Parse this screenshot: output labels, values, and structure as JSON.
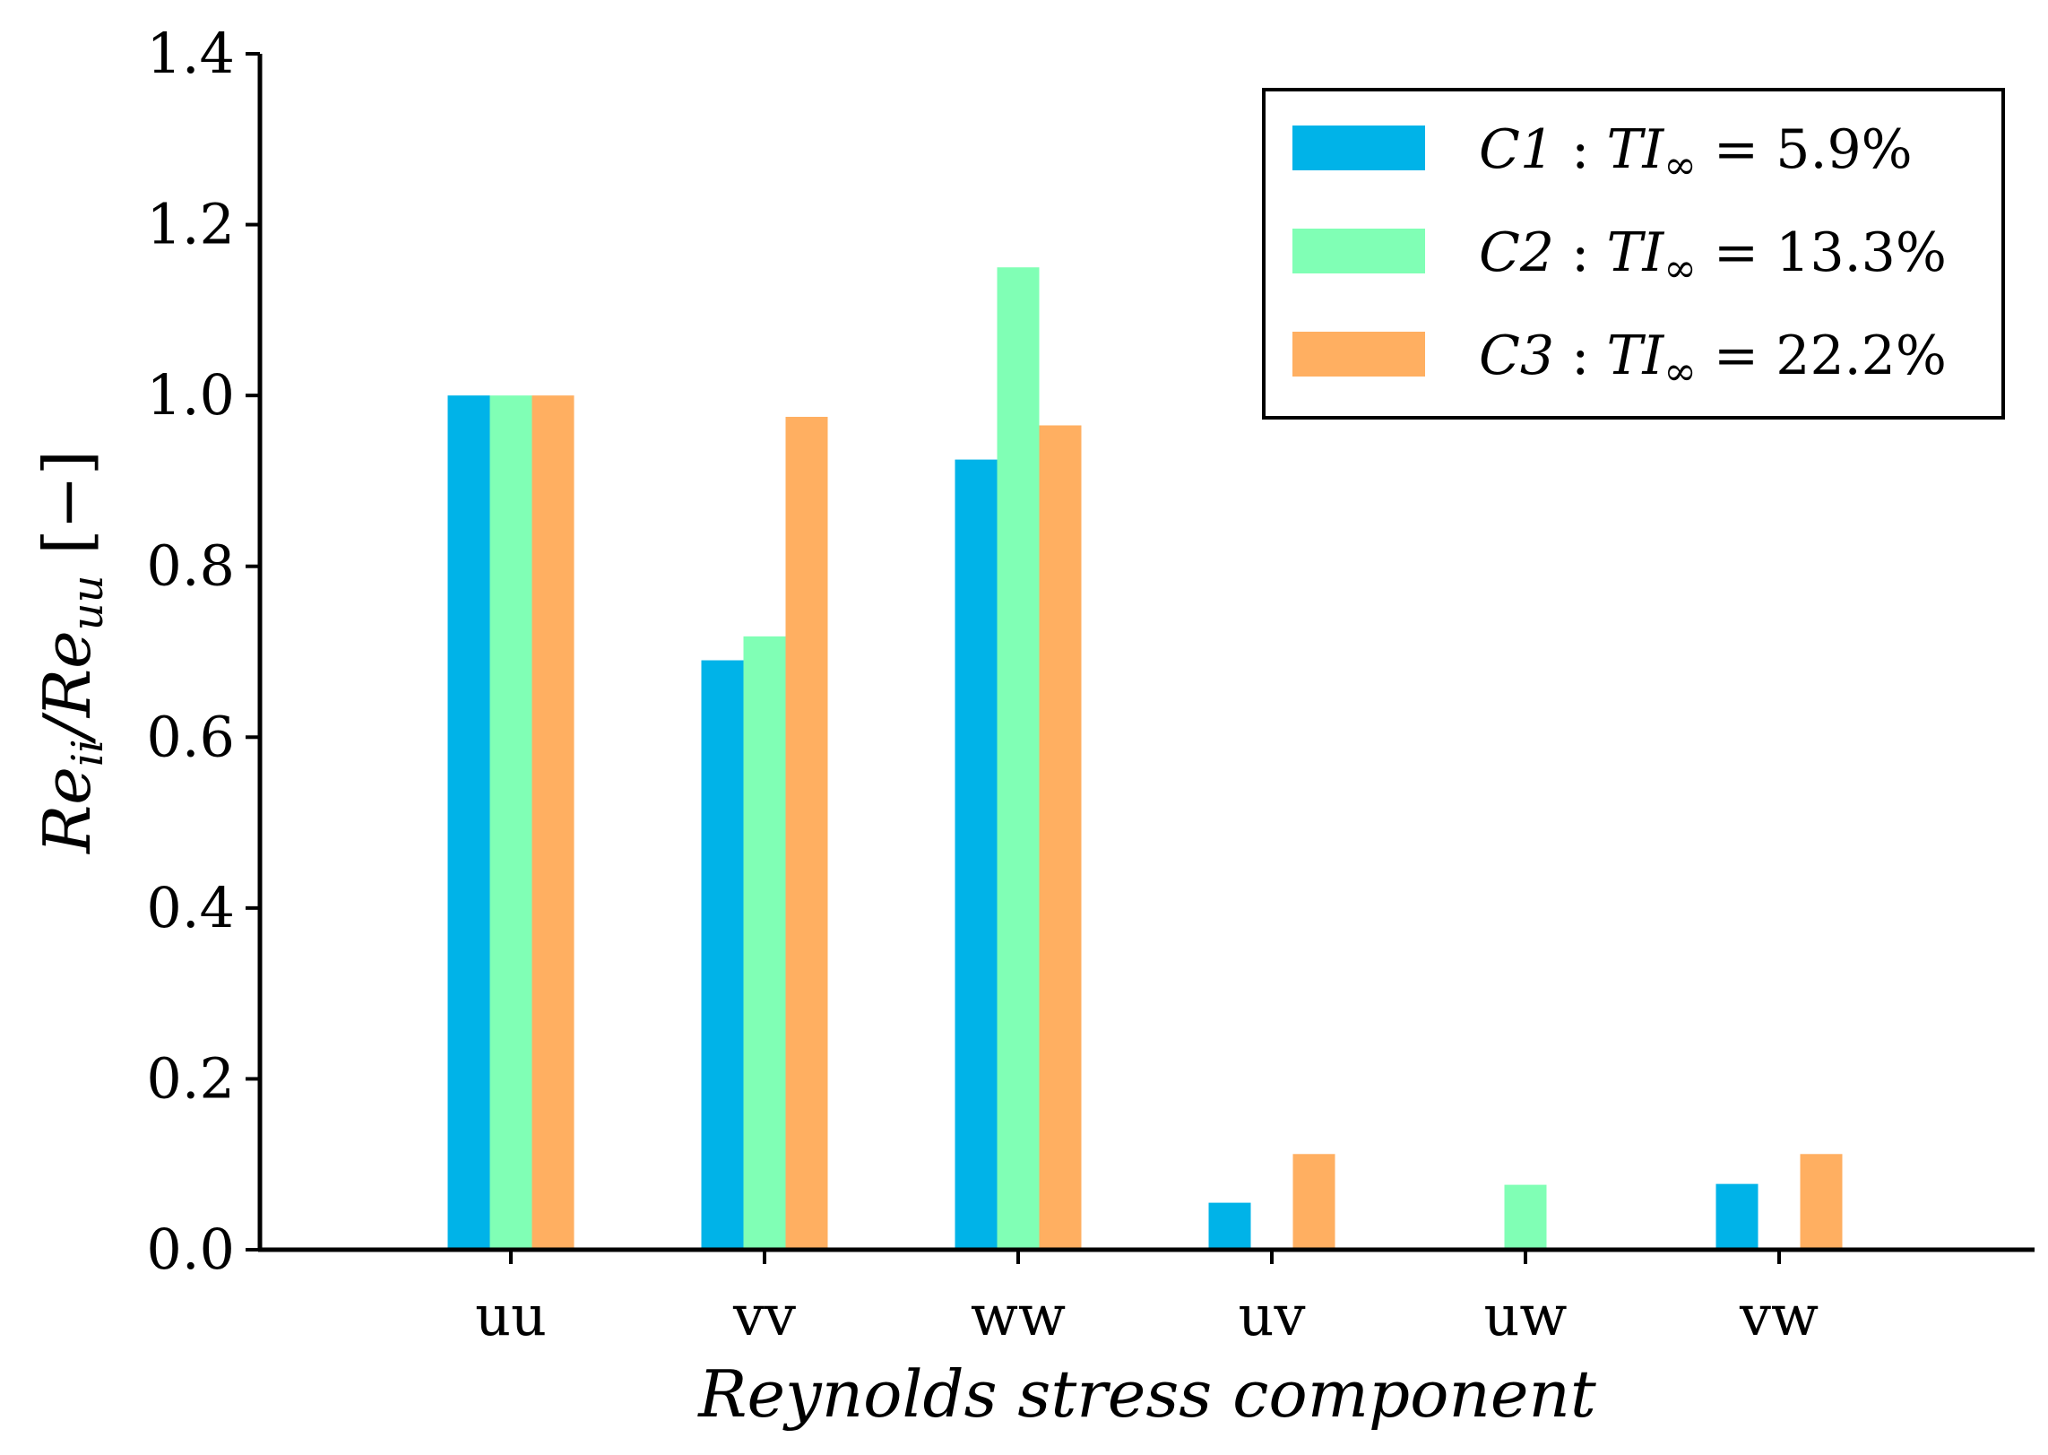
{
  "chart_data": {
    "type": "bar",
    "categories": [
      "uu",
      "vv",
      "ww",
      "uv",
      "uw",
      "vw"
    ],
    "series": [
      {
        "name": "C1",
        "legend": {
          "case": "C1",
          "sep": " : ",
          "ti": "TI",
          "sub": "∞",
          "eq": " = ",
          "value": "5.9%"
        },
        "color": "#00b3e8",
        "values": [
          1.0,
          0.69,
          0.925,
          0.055,
          0.0,
          0.077
        ]
      },
      {
        "name": "C2",
        "legend": {
          "case": "C2",
          "sep": " : ",
          "ti": "TI",
          "sub": "∞",
          "eq": " = ",
          "value": "13.3%"
        },
        "color": "#80ffb5",
        "values": [
          1.0,
          0.718,
          1.15,
          0.0,
          0.076,
          0.0
        ]
      },
      {
        "name": "C3",
        "legend": {
          "case": "C3",
          "sep": " : ",
          "ti": "TI",
          "sub": "∞",
          "eq": " = ",
          "value": "22.2%"
        },
        "color": "#ffaf61",
        "values": [
          1.0,
          0.975,
          0.965,
          0.112,
          0.0,
          0.112
        ]
      }
    ],
    "xlabel": "Reynolds stress component",
    "ylabel": {
      "main": "Re",
      "sub1": "ii",
      "mid": "/Re",
      "sub2": "uu",
      "unit": " [−]"
    },
    "ylim": [
      0,
      1.4
    ],
    "yticks": [
      "0.0",
      "0.2",
      "0.4",
      "0.6",
      "0.8",
      "1.0",
      "1.2",
      "1.4"
    ],
    "grid": false,
    "legend_position": "top-right"
  }
}
